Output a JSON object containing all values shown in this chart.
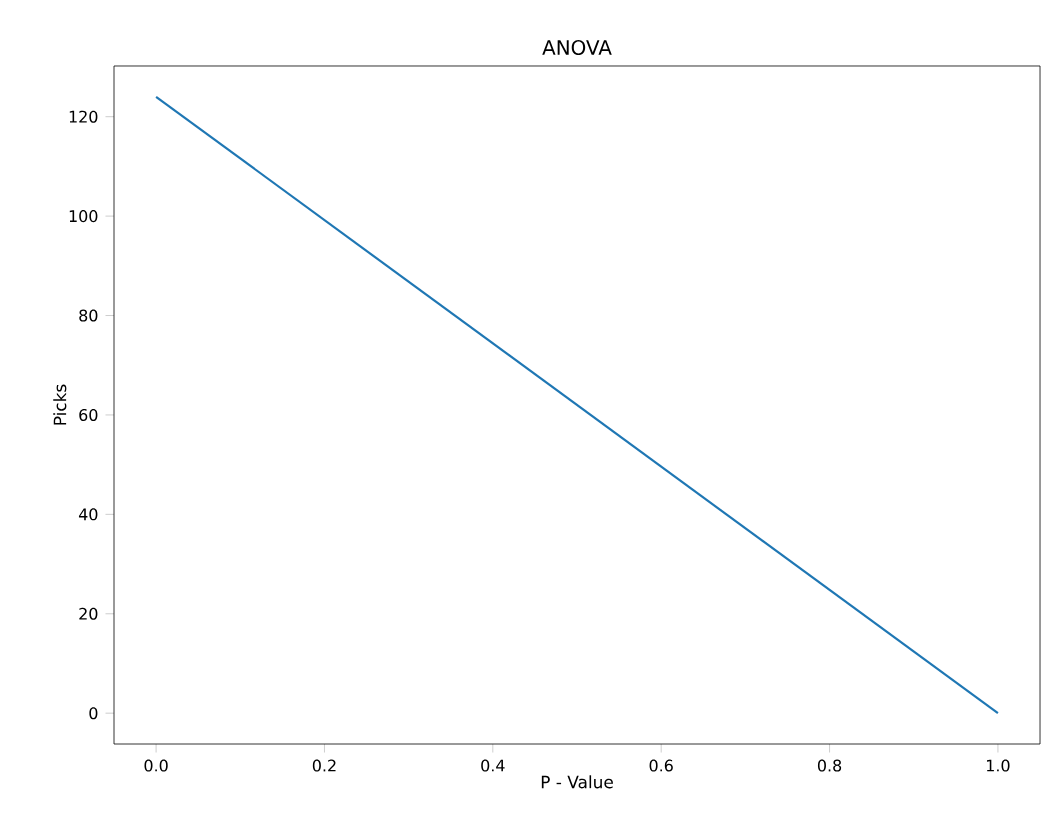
{
  "chart_data": {
    "type": "line",
    "title": "ANOVA",
    "xlabel": "P - Value",
    "ylabel": "Picks",
    "x": [
      0,
      1
    ],
    "series": [
      {
        "color": "#1f77b4",
        "values": [
          124,
          0
        ]
      }
    ],
    "xlim": [
      -0.05,
      1.05
    ],
    "ylim": [
      -6.2,
      130.2
    ],
    "xticks": [
      {
        "value": 0,
        "label": "0.0"
      },
      {
        "value": 0.2,
        "label": "0.2"
      },
      {
        "value": 0.4,
        "label": "0.4"
      },
      {
        "value": 0.6,
        "label": "0.6"
      },
      {
        "value": 0.8,
        "label": "0.8"
      },
      {
        "value": 1,
        "label": "1.0"
      }
    ],
    "yticks": [
      0,
      20,
      40,
      60,
      80,
      100,
      120
    ]
  }
}
